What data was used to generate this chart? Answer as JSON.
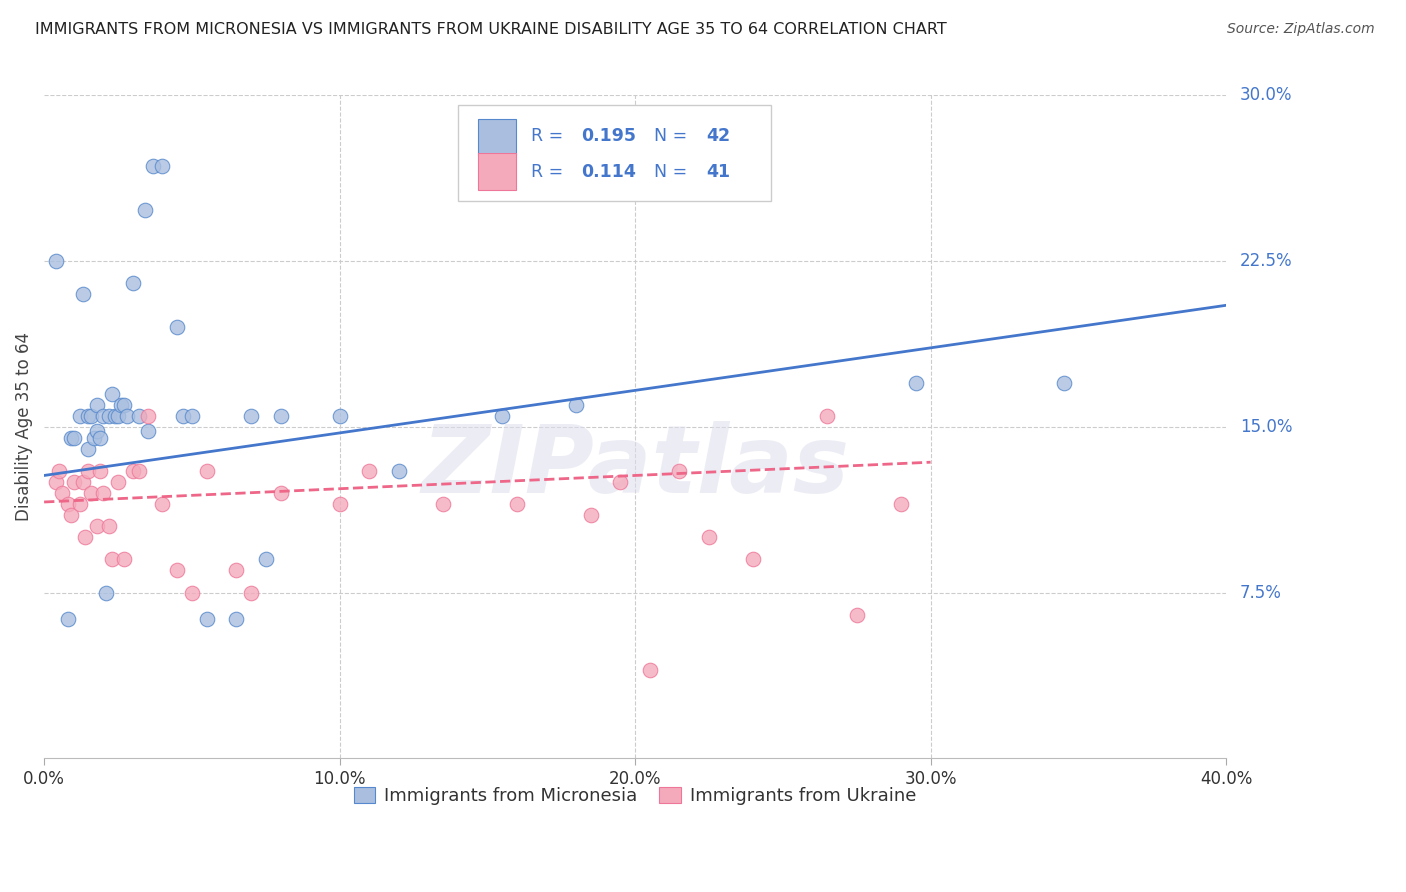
{
  "title": "IMMIGRANTS FROM MICRONESIA VS IMMIGRANTS FROM UKRAINE DISABILITY AGE 35 TO 64 CORRELATION CHART",
  "source": "Source: ZipAtlas.com",
  "ylabel": "Disability Age 35 to 64",
  "xlim": [
    0.0,
    0.4
  ],
  "ylim": [
    0.0,
    0.3
  ],
  "yticks_right": [
    0.075,
    0.15,
    0.225,
    0.3
  ],
  "ytick_labels_right": [
    "7.5%",
    "15.0%",
    "22.5%",
    "30.0%"
  ],
  "xticks": [
    0.0,
    0.1,
    0.2,
    0.3,
    0.4
  ],
  "xtick_labels": [
    "0.0%",
    "10.0%",
    "20.0%",
    "30.0%",
    "40.0%"
  ],
  "legend_r1": "0.195",
  "legend_n1": "42",
  "legend_r2": "0.114",
  "legend_n2": "41",
  "color_blue_fill": "#AABFE0",
  "color_pink_fill": "#F4AABB",
  "color_blue_edge": "#5588CC",
  "color_pink_edge": "#EE7799",
  "color_blue_line": "#4477CC",
  "color_pink_line": "#EE6688",
  "color_blue_text": "#4477CC",
  "color_pink_text": "#EE6688",
  "color_all_text_blue": "#4477CC",
  "color_title": "#222222",
  "color_grid": "#CCCCCC",
  "micronesia_x": [
    0.004,
    0.008,
    0.009,
    0.01,
    0.012,
    0.013,
    0.015,
    0.015,
    0.016,
    0.017,
    0.018,
    0.018,
    0.019,
    0.02,
    0.021,
    0.022,
    0.023,
    0.024,
    0.025,
    0.026,
    0.027,
    0.028,
    0.03,
    0.032,
    0.034,
    0.035,
    0.037,
    0.04,
    0.045,
    0.047,
    0.05,
    0.055,
    0.065,
    0.07,
    0.075,
    0.08,
    0.1,
    0.12,
    0.155,
    0.18,
    0.295,
    0.345
  ],
  "micronesia_y": [
    0.225,
    0.063,
    0.145,
    0.145,
    0.155,
    0.21,
    0.155,
    0.14,
    0.155,
    0.145,
    0.148,
    0.16,
    0.145,
    0.155,
    0.075,
    0.155,
    0.165,
    0.155,
    0.155,
    0.16,
    0.16,
    0.155,
    0.215,
    0.155,
    0.248,
    0.148,
    0.268,
    0.268,
    0.195,
    0.155,
    0.155,
    0.063,
    0.063,
    0.155,
    0.09,
    0.155,
    0.155,
    0.13,
    0.155,
    0.16,
    0.17,
    0.17
  ],
  "ukraine_x": [
    0.004,
    0.005,
    0.006,
    0.008,
    0.009,
    0.01,
    0.012,
    0.013,
    0.014,
    0.015,
    0.016,
    0.018,
    0.019,
    0.02,
    0.022,
    0.023,
    0.025,
    0.027,
    0.03,
    0.032,
    0.035,
    0.04,
    0.045,
    0.05,
    0.055,
    0.065,
    0.07,
    0.08,
    0.1,
    0.11,
    0.135,
    0.16,
    0.185,
    0.195,
    0.205,
    0.215,
    0.225,
    0.24,
    0.265,
    0.275,
    0.29
  ],
  "ukraine_y": [
    0.125,
    0.13,
    0.12,
    0.115,
    0.11,
    0.125,
    0.115,
    0.125,
    0.1,
    0.13,
    0.12,
    0.105,
    0.13,
    0.12,
    0.105,
    0.09,
    0.125,
    0.09,
    0.13,
    0.13,
    0.155,
    0.115,
    0.085,
    0.075,
    0.13,
    0.085,
    0.075,
    0.12,
    0.115,
    0.13,
    0.115,
    0.115,
    0.11,
    0.125,
    0.04,
    0.13,
    0.1,
    0.09,
    0.155,
    0.065,
    0.115
  ],
  "blue_line_x": [
    0.0,
    0.4
  ],
  "blue_line_y": [
    0.128,
    0.205
  ],
  "pink_line_x": [
    0.0,
    0.3
  ],
  "pink_line_y": [
    0.116,
    0.134
  ],
  "background_color": "#FFFFFF",
  "watermark": "ZIPatlas",
  "watermark_color": "#DDDDEE"
}
